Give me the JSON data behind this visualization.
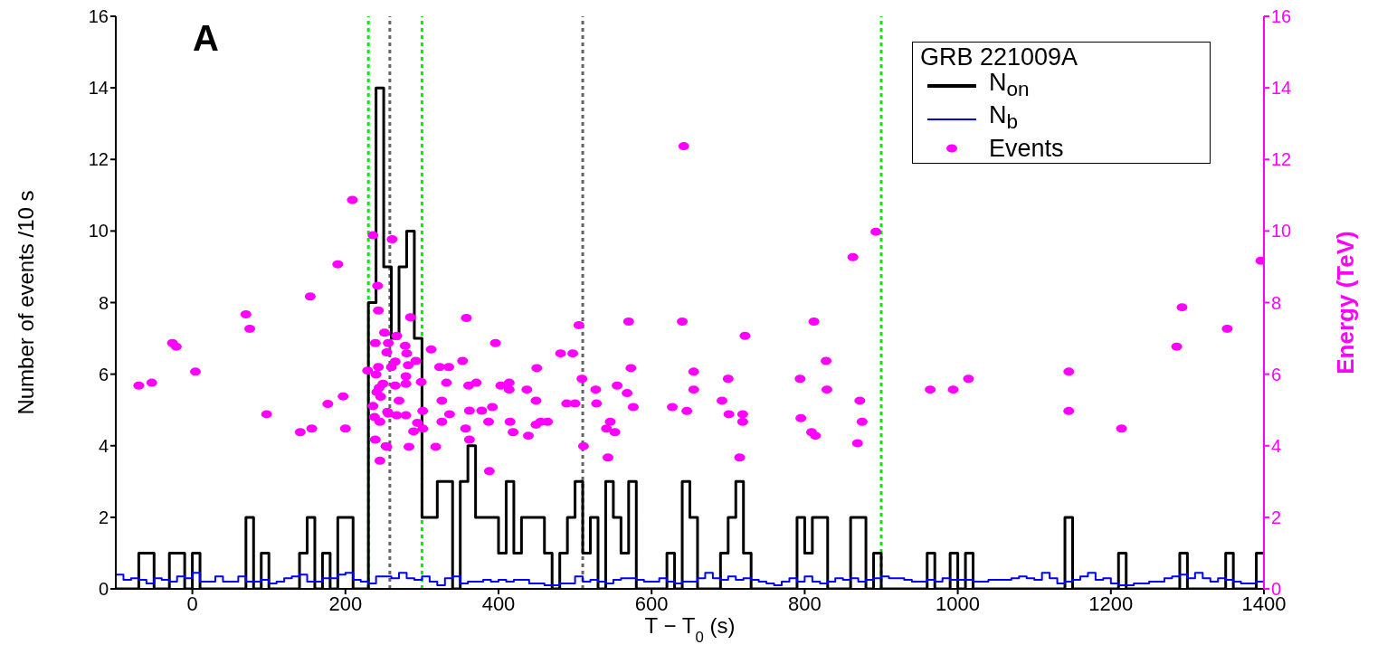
{
  "chart_data": {
    "type": "histogram",
    "annotations": [
      "A"
    ],
    "xlabel": "T − T$_{0}$ (s)",
    "ylabel": "Number of events /10 s",
    "y2label": "Energy (TeV)",
    "legend_title": "GRB 221009A",
    "legend": "top right",
    "xlim": [
      -100,
      1400
    ],
    "xticks": [
      0,
      200,
      400,
      600,
      800,
      1000,
      1200,
      1400
    ],
    "ylim": [
      0,
      16
    ],
    "yticks": [
      0,
      2,
      4,
      6,
      8,
      10,
      12,
      14,
      16
    ],
    "y2lim": [
      0,
      16
    ],
    "y2ticks": [
      0,
      2,
      4,
      6,
      8,
      10,
      12,
      14,
      16
    ],
    "bins": [
      -100,
      -90,
      -80,
      -70,
      -60,
      -50,
      -40,
      -30,
      -20,
      -10,
      0,
      10,
      20,
      30,
      40,
      50,
      60,
      70,
      80,
      90,
      100,
      110,
      120,
      130,
      140,
      150,
      160,
      170,
      180,
      190,
      200,
      210,
      220,
      230,
      240,
      250,
      260,
      270,
      280,
      290,
      300,
      310,
      320,
      330,
      340,
      350,
      360,
      370,
      380,
      390,
      400,
      410,
      420,
      430,
      440,
      450,
      460,
      470,
      480,
      490,
      500,
      510,
      520,
      530,
      540,
      550,
      560,
      570,
      580,
      590,
      600,
      610,
      620,
      630,
      640,
      650,
      660,
      670,
      680,
      690,
      700,
      710,
      720,
      730,
      740,
      750,
      760,
      770,
      780,
      790,
      800,
      810,
      820,
      830,
      840,
      850,
      860,
      870,
      880,
      890,
      900,
      910,
      920,
      930,
      940,
      950,
      960,
      970,
      980,
      990,
      1000,
      1010,
      1020,
      1030,
      1040,
      1050,
      1060,
      1070,
      1080,
      1090,
      1100,
      1110,
      1120,
      1130,
      1140,
      1150,
      1160,
      1170,
      1180,
      1190,
      1200,
      1210,
      1220,
      1230,
      1240,
      1250,
      1260,
      1270,
      1280,
      1290,
      1300,
      1310,
      1320,
      1330,
      1340,
      1350,
      1360,
      1370,
      1380,
      1390,
      1400
    ],
    "series": [
      {
        "name": "N$_{on}$",
        "color": "#000000",
        "values": [
          0,
          0,
          0,
          1,
          1,
          0,
          0,
          1,
          1,
          0,
          1,
          0,
          0,
          0,
          0,
          0,
          0,
          2,
          0,
          1,
          0,
          0,
          0,
          0,
          1,
          2,
          0,
          1,
          0,
          2,
          2,
          0,
          0,
          8,
          14,
          9,
          7,
          9,
          10,
          7,
          2,
          2,
          3,
          3,
          0,
          3,
          4,
          2,
          2,
          2,
          1,
          3,
          1,
          2,
          2,
          2,
          1,
          0,
          1,
          2,
          3,
          1,
          2,
          0,
          3,
          2,
          1,
          3,
          0,
          0,
          0,
          0,
          1,
          0,
          3,
          2,
          0,
          0,
          0,
          1,
          2,
          3,
          1,
          0,
          0,
          0,
          0,
          0,
          0,
          2,
          1,
          2,
          2,
          0,
          0,
          0,
          2,
          2,
          0,
          1,
          0,
          0,
          0,
          0,
          0,
          0,
          1,
          0,
          0,
          1,
          0,
          1,
          0,
          0,
          0,
          0,
          0,
          0,
          0,
          0,
          0,
          0,
          0,
          0,
          2,
          0,
          0,
          0,
          0,
          0,
          0,
          1,
          0,
          0,
          0,
          0,
          0,
          0,
          0,
          1,
          0,
          0,
          0,
          0,
          0,
          1,
          0,
          0,
          0,
          1
        ]
      },
      {
        "name": "N$_{b}$",
        "color": "#0000ff",
        "values": [
          0.4,
          0.25,
          0.3,
          0.25,
          0.15,
          0.3,
          0.25,
          0.2,
          0.35,
          0.3,
          0.45,
          0.2,
          0.2,
          0.35,
          0.2,
          0.2,
          0.35,
          0.2,
          0.2,
          0.25,
          0.15,
          0.2,
          0.3,
          0.35,
          0.4,
          0.2,
          0.2,
          0.3,
          0.3,
          0.4,
          0.45,
          0.25,
          0.2,
          0.15,
          0.35,
          0.35,
          0.3,
          0.45,
          0.3,
          0.25,
          0.35,
          0.2,
          0.1,
          0.3,
          0.35,
          0.15,
          0.2,
          0.2,
          0.25,
          0.2,
          0.25,
          0.2,
          0.25,
          0.25,
          0.15,
          0.15,
          0.1,
          0.1,
          0.15,
          0.15,
          0.35,
          0.2,
          0.25,
          0.2,
          0.15,
          0.25,
          0.3,
          0.3,
          0.25,
          0.2,
          0.2,
          0.3,
          0.2,
          0.15,
          0.2,
          0.2,
          0.3,
          0.45,
          0.3,
          0.25,
          0.35,
          0.25,
          0.3,
          0.25,
          0.2,
          0.15,
          0.1,
          0.2,
          0.3,
          0.2,
          0.35,
          0.2,
          0.15,
          0.2,
          0.3,
          0.25,
          0.3,
          0.2,
          0.25,
          0.3,
          0.35,
          0.3,
          0.3,
          0.25,
          0.2,
          0.2,
          0.25,
          0.2,
          0.3,
          0.25,
          0.25,
          0.25,
          0.2,
          0.2,
          0.25,
          0.25,
          0.25,
          0.3,
          0.35,
          0.3,
          0.25,
          0.45,
          0.3,
          0.15,
          0.2,
          0.25,
          0.35,
          0.45,
          0.25,
          0.3,
          0.15,
          0.1,
          0.1,
          0.15,
          0.15,
          0.2,
          0.2,
          0.3,
          0.35,
          0.4,
          0.3,
          0.45,
          0.3,
          0.2,
          0.3,
          0.25,
          0.2,
          0.15,
          0.15,
          0.2
        ]
      },
      {
        "name": "Events",
        "type": "scatter",
        "axis": "y2",
        "color": "#ff00ff",
        "marker": "circle",
        "x": [
          -70,
          -53,
          -26,
          -21,
          4,
          70,
          75,
          97,
          141,
          156,
          154,
          177,
          197,
          190,
          200,
          209,
          236,
          261,
          242,
          243,
          251,
          239,
          256,
          229,
          243,
          254,
          240,
          249,
          244,
          246,
          256,
          236,
          238,
          245,
          239,
          254,
          245,
          241,
          285,
          267,
          278,
          280,
          292,
          265,
          282,
          260,
          279,
          299,
          279,
          265,
          270,
          301,
          255,
          267,
          279,
          294,
          301,
          289,
          253,
          283,
          312,
          323,
          335,
          353,
          358,
          396,
          332,
          361,
          371,
          326,
          336,
          326,
          362,
          378,
          392,
          387,
          357,
          362,
          318,
          388,
          403,
          414,
          414,
          437,
          450,
          449,
          415,
          419,
          439,
          449,
          455,
          464,
          481,
          497,
          489,
          500,
          505,
          509,
          511,
          527,
          528,
          546,
          541,
          552,
          543,
          555,
          568,
          576,
          570,
          573,
          642,
          640,
          627,
          646,
          655,
          655,
          722,
          700,
          692,
          701,
          719,
          719,
          715,
          794,
          795,
          809,
          814,
          812,
          828,
          829,
          863,
          872,
          875,
          869,
          893,
          964,
          994,
          1014,
          1145,
          1145,
          1214,
          1286,
          1293,
          1352,
          1396
        ],
        "values": [
          5.68,
          5.76,
          6.87,
          6.77,
          6.07,
          7.67,
          7.27,
          4.88,
          4.38,
          4.48,
          8.17,
          5.17,
          5.38,
          9.07,
          4.48,
          10.87,
          9.88,
          9.77,
          8.47,
          7.78,
          7.16,
          6.87,
          6.87,
          6.1,
          6.2,
          6.61,
          5.99,
          5.73,
          5.62,
          5.37,
          4.9,
          5.11,
          4.8,
          4.67,
          4.17,
          3.97,
          3.58,
          5.5,
          7.59,
          7.07,
          6.79,
          6.58,
          6.37,
          6.35,
          6.25,
          6.2,
          5.94,
          5.78,
          5.73,
          5.68,
          5.26,
          4.97,
          4.95,
          4.85,
          4.85,
          4.64,
          4.48,
          4.4,
          3.99,
          3.97,
          6.69,
          6.2,
          6.2,
          6.37,
          7.57,
          6.87,
          5.76,
          5.68,
          5.76,
          5.26,
          4.88,
          4.67,
          4.98,
          4.98,
          5.08,
          4.67,
          4.48,
          4.17,
          3.97,
          3.29,
          5.68,
          5.76,
          5.57,
          5.57,
          6.17,
          5.26,
          4.67,
          4.38,
          4.28,
          4.59,
          4.67,
          4.67,
          6.58,
          6.58,
          5.18,
          5.18,
          7.37,
          5.87,
          3.99,
          5.57,
          5.18,
          4.67,
          4.48,
          4.38,
          3.67,
          5.68,
          5.47,
          5.08,
          7.47,
          6.17,
          12.37,
          7.47,
          5.08,
          4.97,
          6.07,
          5.57,
          7.07,
          5.87,
          5.26,
          4.88,
          4.88,
          4.67,
          3.67,
          5.87,
          4.77,
          4.38,
          4.28,
          7.47,
          6.37,
          5.57,
          9.27,
          5.26,
          4.67,
          4.07,
          9.98,
          5.57,
          5.57,
          5.87,
          6.07,
          4.97,
          4.48,
          6.77,
          7.87,
          7.27,
          9.17
        ]
      }
    ],
    "ref_lines": [
      {
        "axis": "x",
        "value": 230,
        "color": "#00ee00",
        "line_style": "dotted"
      },
      {
        "axis": "x",
        "value": 258,
        "color": "#666666",
        "line_style": "dotted"
      },
      {
        "axis": "x",
        "value": 300,
        "color": "#00ee00",
        "line_style": "dotted"
      },
      {
        "axis": "x",
        "value": 510,
        "color": "#666666",
        "line_style": "dotted"
      },
      {
        "axis": "x",
        "value": 900,
        "color": "#00ee00",
        "line_style": "dotted"
      }
    ]
  }
}
